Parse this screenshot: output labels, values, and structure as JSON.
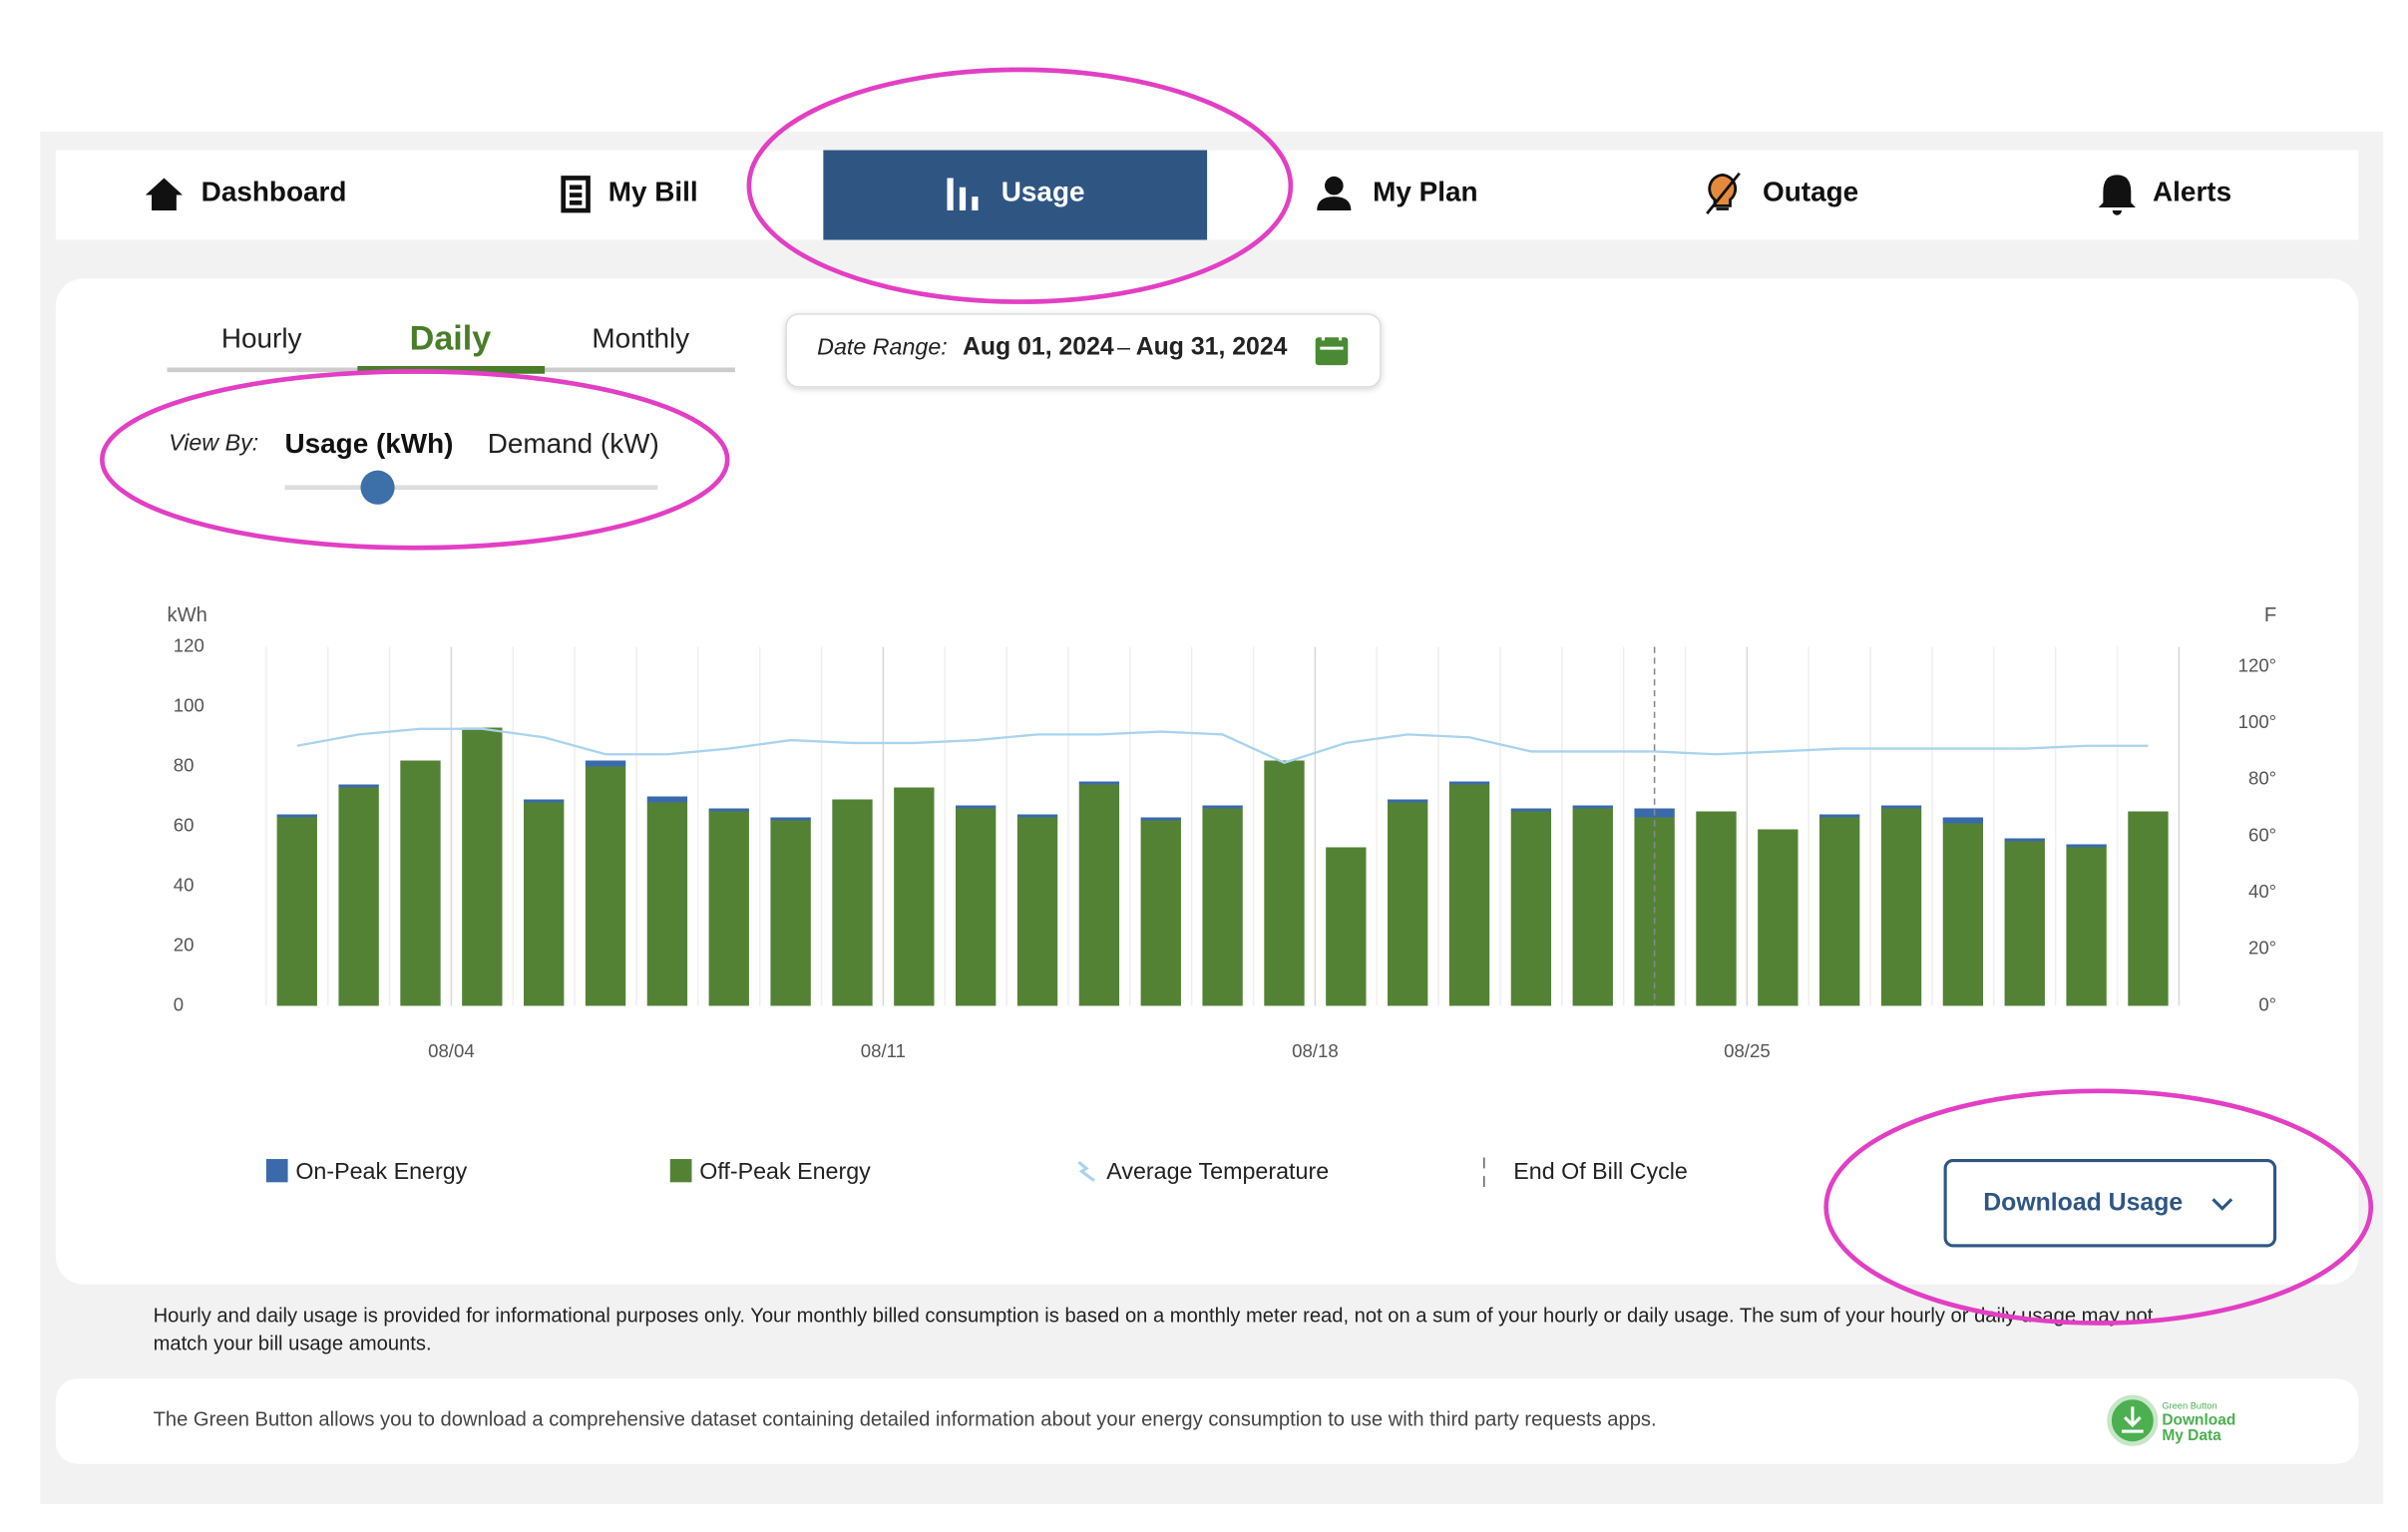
{
  "nav": [
    "Dashboard",
    "My Bill",
    "Usage",
    "My Plan",
    "Outage",
    "Alerts"
  ],
  "tabs": [
    "Hourly",
    "Daily",
    "Monthly"
  ],
  "date_range": {
    "label": "Date Range:",
    "start": "Aug 01, 2024",
    "separator": "–",
    "end": "Aug 31, 2024"
  },
  "view_by": {
    "label": "View By:",
    "options": [
      "Usage (kWh)",
      "Demand (kW)"
    ]
  },
  "chart_data": {
    "type": "bar",
    "stacked": true,
    "y_label": "kWh",
    "y2_label": "F",
    "categories": [
      null,
      null,
      null,
      "08/04",
      null,
      null,
      null,
      null,
      null,
      null,
      "08/11",
      null,
      null,
      null,
      null,
      null,
      null,
      "08/18",
      null,
      null,
      null,
      null,
      null,
      null,
      "08/25",
      null,
      null,
      null,
      null,
      null,
      null
    ],
    "series": [
      {
        "name": "On-Peak Energy",
        "color": "#3a6aab",
        "type": "bar",
        "values": [
          1,
          1,
          0,
          0,
          1,
          2,
          2,
          1,
          1,
          0,
          0,
          1,
          1,
          1,
          1,
          1,
          0,
          0,
          1,
          1,
          1,
          1,
          3,
          0,
          0,
          1,
          1,
          2,
          1,
          1,
          0
        ]
      },
      {
        "name": "Off-Peak Energy",
        "color": "#548235",
        "type": "bar",
        "values": [
          63,
          73,
          82,
          93,
          68,
          80,
          68,
          65,
          62,
          69,
          73,
          66,
          63,
          74,
          62,
          66,
          82,
          53,
          68,
          74,
          65,
          66,
          63,
          65,
          59,
          63,
          66,
          61,
          55,
          53,
          65
        ]
      },
      {
        "name": "Average Temperature",
        "color": "#a9d3ee",
        "type": "line",
        "axis": "y2",
        "values": [
          92,
          96,
          98,
          98,
          95,
          89,
          89,
          91,
          94,
          93,
          93,
          94,
          96,
          96,
          97,
          96,
          86,
          93,
          96,
          95,
          90,
          90,
          90,
          89,
          90,
          91,
          91,
          91,
          91,
          92,
          92
        ]
      }
    ],
    "bill_cycle_label": "End Of Bill Cycle",
    "ylim": [
      0,
      120
    ],
    "yticks": [
      0,
      20,
      40,
      60,
      80,
      100,
      120
    ],
    "y2lim": [
      0,
      127
    ],
    "y2ticks": [
      {
        "value": 0,
        "label": "0°"
      },
      {
        "value": 20,
        "label": "20°"
      },
      {
        "value": 40,
        "label": "40°"
      },
      {
        "value": 60,
        "label": "60°"
      },
      {
        "value": 80,
        "label": "80°"
      },
      {
        "value": 100,
        "label": "100°"
      },
      {
        "value": 120,
        "label": "120°"
      }
    ],
    "grid": true
  },
  "download_button": "Download Usage",
  "disclaimer": [
    "Hourly and daily usage is provided for informational purposes only. Your monthly billed consumption is based on a monthly meter read, not on a sum of your hourly or daily usage. The sum of your hourly or daily usage may not",
    "match your bill usage amounts."
  ],
  "green_button": {
    "text": "The Green Button allows you to download a comprehensive dataset containing detailed information about your energy consumption to use with third party requests apps.",
    "logo": [
      "Green Button",
      "Download",
      "My Data"
    ]
  }
}
